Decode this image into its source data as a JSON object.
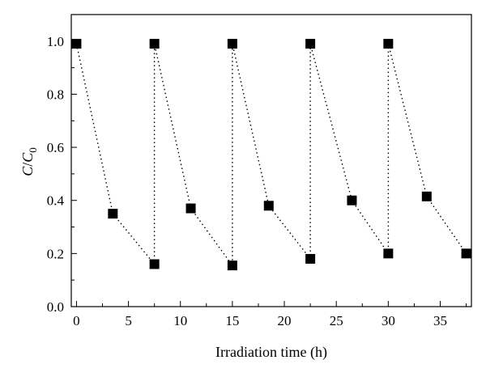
{
  "chart_data": {
    "type": "line",
    "xlabel": "Irradiation time (h)",
    "ylabel_main": "C",
    "ylabel_sep": "/",
    "ylabel_base": "C",
    "ylabel_sub": "0",
    "xlim": [
      -0.5,
      38
    ],
    "ylim": [
      0,
      1.1
    ],
    "x_ticks": [
      0,
      5,
      10,
      15,
      20,
      25,
      30,
      35
    ],
    "x_tick_labels": [
      "0",
      "5",
      "10",
      "15",
      "20",
      "25",
      "30",
      "35"
    ],
    "y_ticks": [
      0.0,
      0.2,
      0.4,
      0.6,
      0.8,
      1.0
    ],
    "y_tick_labels": [
      "0.0",
      "0.2",
      "0.4",
      "0.6",
      "0.8",
      "1.0"
    ],
    "grid": false,
    "line_style": "dotted",
    "marker": "square",
    "series": [
      {
        "x": [
          0,
          3.5,
          7.5,
          7.5,
          11,
          15,
          15,
          18.5,
          22.5,
          22.5,
          26.5,
          30,
          30,
          33.7,
          37.5
        ],
        "y": [
          0.99,
          0.35,
          0.16,
          0.99,
          0.37,
          0.155,
          0.99,
          0.38,
          0.18,
          0.99,
          0.4,
          0.2,
          0.99,
          0.415,
          0.2
        ]
      }
    ]
  }
}
